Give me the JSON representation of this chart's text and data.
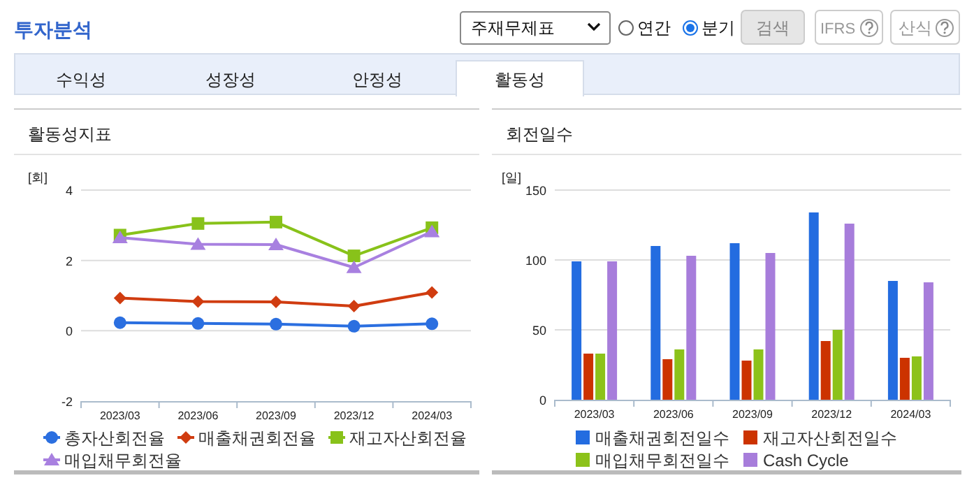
{
  "chart_data": [
    {
      "type": "other",
      "title": "투자분석",
      "annotations": [
        "주재무제표",
        "연간",
        "분기",
        "검색",
        "IFRS",
        "산식",
        "수익성",
        "성장성",
        "안정성",
        "활동성"
      ]
    },
    {
      "type": "line",
      "title": "활동성지표",
      "ylabel": "[회]",
      "categories": [
        "2023/03",
        "2023/06",
        "2023/09",
        "2023/12",
        "2024/03"
      ],
      "ylim": [
        -2,
        4
      ],
      "yticks": [
        -2,
        0,
        2,
        4
      ],
      "grid": "y",
      "legend": "bottom",
      "line_style": "solid",
      "series": [
        {
          "name": "총자산회전율",
          "color": "#2b6fe0",
          "marker": "circle",
          "values": [
            0.23,
            0.21,
            0.19,
            0.13,
            0.2
          ]
        },
        {
          "name": "매출채권회전율",
          "color": "#d03c10",
          "marker": "diamond",
          "values": [
            0.93,
            0.83,
            0.82,
            0.7,
            1.09
          ]
        },
        {
          "name": "재고자산회전율",
          "color": "#88c21a",
          "marker": "square",
          "values": [
            2.72,
            3.05,
            3.09,
            2.13,
            2.93
          ]
        },
        {
          "name": "매입채무회전율",
          "color": "#a880e0",
          "marker": "triangle",
          "values": [
            2.65,
            2.46,
            2.45,
            1.8,
            2.82
          ]
        }
      ]
    },
    {
      "type": "bar",
      "title": "회전일수",
      "ylabel": "[일]",
      "categories": [
        "2023/03",
        "2023/06",
        "2023/09",
        "2023/12",
        "2024/03"
      ],
      "ylim": [
        0,
        150
      ],
      "yticks": [
        0,
        50,
        100,
        150
      ],
      "grid": "y",
      "legend": "bottom",
      "series": [
        {
          "name": "매출채권회전일수",
          "color": "#236ce0",
          "values": [
            99,
            110,
            112,
            134,
            85
          ]
        },
        {
          "name": "재고자산회전일수",
          "color": "#cc3300",
          "values": [
            33,
            29,
            28,
            42,
            30
          ]
        },
        {
          "name": "매입채무회전일수",
          "color": "#8cc21a",
          "values": [
            33,
            36,
            36,
            50,
            31
          ]
        },
        {
          "name": "Cash Cycle",
          "color": "#a77ddb",
          "values": [
            99,
            103,
            105,
            126,
            84
          ]
        }
      ]
    }
  ]
}
